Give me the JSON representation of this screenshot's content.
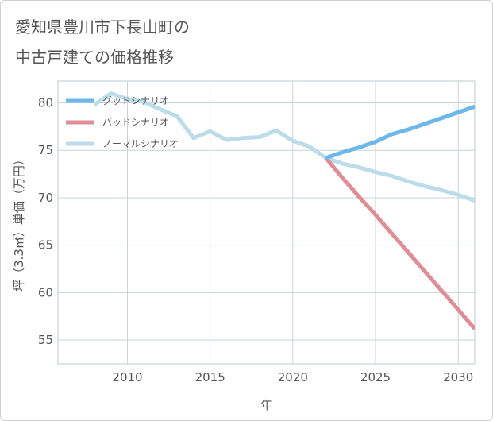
{
  "title_lines": [
    "愛知県豊川市下長山町の",
    "中古戸建ての価格推移"
  ],
  "chart_data": {
    "type": "line",
    "title": "愛知県豊川市下長山町の中古戸建ての価格推移",
    "xlabel": "年",
    "ylabel": "坪（3.3㎡）単価（万円）",
    "xlim": [
      2005.8,
      2031
    ],
    "ylim": [
      52.5,
      82.3
    ],
    "x_ticks": [
      2010,
      2015,
      2020,
      2025,
      2030
    ],
    "y_ticks": [
      55,
      60,
      65,
      70,
      75,
      80
    ],
    "grid": true,
    "legend_position": "top-left",
    "series": [
      {
        "name": "グッドシナリオ",
        "color": "#6cb8ea",
        "x": [
          2022,
          2023,
          2024,
          2025,
          2026,
          2027,
          2028,
          2029,
          2030,
          2031
        ],
        "values": [
          74.2,
          74.8,
          75.3,
          75.9,
          76.7,
          77.2,
          77.8,
          78.4,
          79.0,
          79.6
        ]
      },
      {
        "name": "バッドシナリオ",
        "color": "#de8f95",
        "x": [
          2022,
          2023,
          2024,
          2025,
          2026,
          2027,
          2028,
          2029,
          2030,
          2031
        ],
        "values": [
          74.2,
          72.1,
          70.1,
          68.2,
          66.2,
          64.2,
          62.2,
          60.2,
          58.2,
          56.2
        ]
      },
      {
        "name": "ノーマルシナリオ",
        "color": "#bcdcea",
        "x": [
          2008,
          2009,
          2010,
          2011,
          2012,
          2013,
          2014,
          2015,
          2016,
          2017,
          2018,
          2019,
          2020,
          2021,
          2022,
          2023,
          2024,
          2025,
          2026,
          2027,
          2028,
          2029,
          2030,
          2031
        ],
        "values": [
          79.8,
          81.0,
          80.4,
          80.1,
          79.3,
          78.6,
          76.3,
          77.0,
          76.1,
          76.3,
          76.4,
          77.1,
          76.0,
          75.4,
          74.2,
          73.6,
          73.2,
          72.7,
          72.3,
          71.7,
          71.2,
          70.8,
          70.3,
          69.7
        ]
      }
    ]
  }
}
